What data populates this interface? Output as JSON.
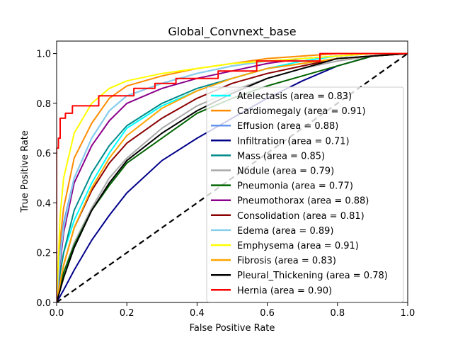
{
  "chart_data": {
    "type": "line",
    "title": "Global_Convnext_base",
    "xlabel": "False Positive Rate",
    "ylabel": "True Positive Rate",
    "xlim": [
      0,
      1
    ],
    "ylim": [
      0,
      1.05
    ],
    "xticks": [
      "0.0",
      "0.2",
      "0.4",
      "0.6",
      "0.8",
      "1.0"
    ],
    "yticks": [
      "0.0",
      "0.2",
      "0.4",
      "0.6",
      "0.8",
      "1.0"
    ],
    "grid": false,
    "legend_position": "lower-right",
    "diagonal": {
      "x": [
        0,
        1
      ],
      "y": [
        0,
        1
      ],
      "color": "#000000",
      "style": "dashed"
    },
    "series": [
      {
        "name": "Atelectasis (area = 0.83)",
        "color": "#00ffff",
        "x": [
          0,
          0.01,
          0.02,
          0.05,
          0.1,
          0.15,
          0.2,
          0.3,
          0.4,
          0.5,
          0.6,
          0.7,
          0.8,
          0.9,
          1.0
        ],
        "y": [
          0,
          0.12,
          0.2,
          0.33,
          0.48,
          0.6,
          0.7,
          0.79,
          0.85,
          0.9,
          0.94,
          0.97,
          0.99,
          1.0,
          1.0
        ]
      },
      {
        "name": "Cardiomegaly (area = 0.91)",
        "color": "#ff8c00",
        "x": [
          0,
          0.01,
          0.02,
          0.05,
          0.1,
          0.15,
          0.2,
          0.3,
          0.4,
          0.5,
          0.6,
          0.7,
          0.8,
          0.9,
          1.0
        ],
        "y": [
          0,
          0.25,
          0.38,
          0.58,
          0.72,
          0.82,
          0.87,
          0.91,
          0.94,
          0.96,
          0.98,
          0.99,
          1.0,
          1.0,
          1.0
        ]
      },
      {
        "name": "Effusion (area = 0.88)",
        "color": "#6495ed",
        "x": [
          0,
          0.01,
          0.02,
          0.05,
          0.1,
          0.15,
          0.2,
          0.3,
          0.4,
          0.5,
          0.6,
          0.7,
          0.8,
          0.9,
          1.0
        ],
        "y": [
          0,
          0.2,
          0.32,
          0.5,
          0.66,
          0.77,
          0.83,
          0.88,
          0.92,
          0.95,
          0.97,
          0.98,
          0.99,
          1.0,
          1.0
        ]
      },
      {
        "name": "Infiltration (area = 0.71)",
        "color": "#00008b",
        "x": [
          0,
          0.02,
          0.05,
          0.1,
          0.15,
          0.2,
          0.3,
          0.4,
          0.5,
          0.6,
          0.7,
          0.8,
          0.9,
          1.0
        ],
        "y": [
          0,
          0.05,
          0.13,
          0.25,
          0.35,
          0.44,
          0.57,
          0.66,
          0.74,
          0.82,
          0.89,
          0.95,
          0.99,
          1.0
        ]
      },
      {
        "name": "Mass (area = 0.85)",
        "color": "#008b8b",
        "x": [
          0,
          0.01,
          0.02,
          0.05,
          0.1,
          0.15,
          0.2,
          0.3,
          0.4,
          0.5,
          0.6,
          0.7,
          0.8,
          0.9,
          1.0
        ],
        "y": [
          0,
          0.12,
          0.2,
          0.37,
          0.52,
          0.63,
          0.71,
          0.8,
          0.86,
          0.9,
          0.94,
          0.96,
          0.98,
          0.99,
          1.0
        ]
      },
      {
        "name": "Nodule (area = 0.79)",
        "color": "#a9a9a9",
        "x": [
          0,
          0.01,
          0.02,
          0.05,
          0.1,
          0.15,
          0.2,
          0.3,
          0.4,
          0.5,
          0.6,
          0.7,
          0.8,
          0.9,
          1.0
        ],
        "y": [
          0,
          0.06,
          0.12,
          0.24,
          0.38,
          0.5,
          0.58,
          0.7,
          0.79,
          0.85,
          0.9,
          0.94,
          0.97,
          0.99,
          1.0
        ]
      },
      {
        "name": "Pneumonia (area = 0.77)",
        "color": "#006400",
        "x": [
          0,
          0.01,
          0.02,
          0.05,
          0.1,
          0.15,
          0.2,
          0.3,
          0.4,
          0.5,
          0.6,
          0.7,
          0.8,
          0.9,
          1.0
        ],
        "y": [
          0,
          0.06,
          0.12,
          0.23,
          0.37,
          0.47,
          0.56,
          0.66,
          0.76,
          0.82,
          0.87,
          0.91,
          0.95,
          0.99,
          1.0
        ]
      },
      {
        "name": "Pneumothorax (area = 0.88)",
        "color": "#8b008b",
        "x": [
          0,
          0.01,
          0.02,
          0.05,
          0.1,
          0.15,
          0.2,
          0.3,
          0.4,
          0.5,
          0.6,
          0.7,
          0.8,
          0.9,
          1.0
        ],
        "y": [
          0,
          0.16,
          0.28,
          0.48,
          0.63,
          0.73,
          0.8,
          0.86,
          0.9,
          0.93,
          0.96,
          0.98,
          0.99,
          1.0,
          1.0
        ]
      },
      {
        "name": "Consolidation (area = 0.81)",
        "color": "#8b0000",
        "x": [
          0,
          0.01,
          0.02,
          0.05,
          0.1,
          0.15,
          0.2,
          0.3,
          0.4,
          0.5,
          0.6,
          0.7,
          0.8,
          0.9,
          1.0
        ],
        "y": [
          0,
          0.08,
          0.15,
          0.3,
          0.45,
          0.56,
          0.64,
          0.74,
          0.82,
          0.88,
          0.92,
          0.95,
          0.98,
          0.99,
          1.0
        ]
      },
      {
        "name": "Edema (area = 0.89)",
        "color": "#87ceeb",
        "x": [
          0,
          0.01,
          0.02,
          0.05,
          0.1,
          0.15,
          0.2,
          0.3,
          0.4,
          0.5,
          0.6,
          0.7,
          0.8,
          0.9,
          1.0
        ],
        "y": [
          0,
          0.18,
          0.3,
          0.5,
          0.66,
          0.77,
          0.83,
          0.88,
          0.92,
          0.95,
          0.97,
          0.98,
          0.99,
          1.0,
          1.0
        ]
      },
      {
        "name": "Emphysema (area = 0.91)",
        "color": "#ffff00",
        "x": [
          0,
          0.01,
          0.02,
          0.05,
          0.1,
          0.15,
          0.2,
          0.3,
          0.4,
          0.5,
          0.6,
          0.7,
          0.8,
          0.9,
          1.0
        ],
        "y": [
          0,
          0.35,
          0.5,
          0.68,
          0.8,
          0.86,
          0.89,
          0.92,
          0.94,
          0.96,
          0.97,
          0.98,
          0.99,
          1.0,
          1.0
        ]
      },
      {
        "name": "Fibrosis (area = 0.83)",
        "color": "#ffa500",
        "x": [
          0,
          0.01,
          0.02,
          0.05,
          0.1,
          0.15,
          0.2,
          0.3,
          0.4,
          0.5,
          0.6,
          0.7,
          0.8,
          0.9,
          1.0
        ],
        "y": [
          0,
          0.08,
          0.15,
          0.3,
          0.46,
          0.58,
          0.67,
          0.78,
          0.85,
          0.9,
          0.94,
          0.96,
          0.98,
          0.99,
          1.0
        ]
      },
      {
        "name": "Pleural_Thickening (area = 0.78)",
        "color": "#000000",
        "x": [
          0,
          0.01,
          0.02,
          0.05,
          0.1,
          0.15,
          0.2,
          0.3,
          0.4,
          0.5,
          0.6,
          0.7,
          0.8,
          0.9,
          1.0
        ],
        "y": [
          0,
          0.05,
          0.1,
          0.22,
          0.37,
          0.48,
          0.57,
          0.68,
          0.77,
          0.84,
          0.9,
          0.94,
          0.98,
          0.99,
          1.0
        ]
      },
      {
        "name": "Hernia (area = 0.90)",
        "color": "#ff0000",
        "step": true,
        "x": [
          0,
          0,
          0.005,
          0.005,
          0.01,
          0.01,
          0.025,
          0.025,
          0.045,
          0.045,
          0.06,
          0.06,
          0.12,
          0.12,
          0.22,
          0.22,
          0.28,
          0.28,
          0.34,
          0.34,
          0.46,
          0.46,
          0.57,
          0.57,
          0.75,
          0.75,
          1.0
        ],
        "y": [
          0,
          0.62,
          0.62,
          0.66,
          0.66,
          0.74,
          0.74,
          0.76,
          0.76,
          0.79,
          0.79,
          0.79,
          0.79,
          0.83,
          0.83,
          0.86,
          0.86,
          0.88,
          0.88,
          0.9,
          0.9,
          0.93,
          0.93,
          0.97,
          0.97,
          1.0,
          1.0
        ]
      }
    ]
  }
}
